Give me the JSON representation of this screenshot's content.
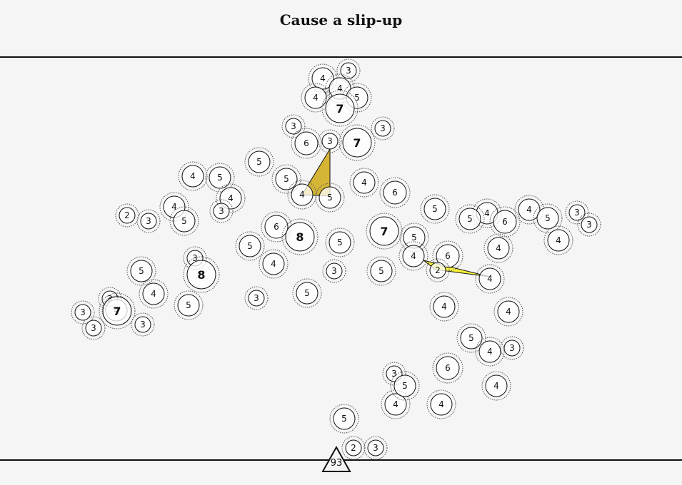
{
  "title": "Cause a slip-up",
  "counter": "93",
  "colors": {
    "background": "#f6f5f5",
    "stroke": "#111111",
    "halo": "#555555",
    "wedge_a": "#d4b536",
    "wedge_b": "#f4f03a"
  },
  "nodes": [
    {
      "id": 1,
      "value": "4"
    },
    {
      "id": 2,
      "value": "3"
    },
    {
      "id": 3,
      "value": "4"
    },
    {
      "id": 4,
      "value": "5"
    },
    {
      "id": 5,
      "value": "4"
    },
    {
      "id": 6,
      "value": "7"
    },
    {
      "id": 7,
      "value": "3"
    },
    {
      "id": 8,
      "value": "3"
    },
    {
      "id": 9,
      "value": "6"
    },
    {
      "id": 10,
      "value": "3"
    },
    {
      "id": 11,
      "value": "7"
    },
    {
      "id": 12,
      "value": "5"
    },
    {
      "id": 13,
      "value": "4"
    },
    {
      "id": 14,
      "value": "5"
    },
    {
      "id": 15,
      "value": "4"
    },
    {
      "id": 16,
      "value": "5"
    },
    {
      "id": 17,
      "value": "4"
    },
    {
      "id": 18,
      "value": "6"
    },
    {
      "id": 19,
      "value": "4"
    },
    {
      "id": 20,
      "value": "3"
    },
    {
      "id": 21,
      "value": "2"
    },
    {
      "id": 22,
      "value": "3"
    },
    {
      "id": 23,
      "value": "4"
    },
    {
      "id": 24,
      "value": "5"
    },
    {
      "id": 25,
      "value": "5"
    },
    {
      "id": 26,
      "value": "6"
    },
    {
      "id": 27,
      "value": "8"
    },
    {
      "id": 28,
      "value": "5"
    },
    {
      "id": 29,
      "value": "7"
    },
    {
      "id": 30,
      "value": "5"
    },
    {
      "id": 31,
      "value": "5"
    },
    {
      "id": 32,
      "value": "4"
    },
    {
      "id": 33,
      "value": "6"
    },
    {
      "id": 34,
      "value": "4"
    },
    {
      "id": 35,
      "value": "5"
    },
    {
      "id": 36,
      "value": "4"
    },
    {
      "id": 37,
      "value": "3"
    },
    {
      "id": 38,
      "value": "3"
    },
    {
      "id": 39,
      "value": "4"
    },
    {
      "id": 40,
      "value": "4"
    },
    {
      "id": 41,
      "value": "4"
    },
    {
      "id": 42,
      "value": "5"
    },
    {
      "id": 43,
      "value": "3"
    },
    {
      "id": 44,
      "value": "8"
    },
    {
      "id": 45,
      "value": "5"
    },
    {
      "id": 46,
      "value": "4"
    },
    {
      "id": 47,
      "value": "5"
    },
    {
      "id": 48,
      "value": "3"
    },
    {
      "id": 49,
      "value": "3"
    },
    {
      "id": 50,
      "value": "5"
    },
    {
      "id": 51,
      "value": "6"
    },
    {
      "id": 52,
      "value": "4"
    },
    {
      "id": 53,
      "value": "2"
    },
    {
      "id": 54,
      "value": "4"
    },
    {
      "id": 55,
      "value": "4"
    },
    {
      "id": 56,
      "value": "4"
    },
    {
      "id": 57,
      "value": "5"
    },
    {
      "id": 58,
      "value": "5"
    },
    {
      "id": 59,
      "value": "3"
    },
    {
      "id": 60,
      "value": "3"
    },
    {
      "id": 61,
      "value": "7"
    },
    {
      "id": 62,
      "value": "3"
    },
    {
      "id": 63,
      "value": "3"
    },
    {
      "id": 64,
      "value": "3"
    },
    {
      "id": 65,
      "value": "6"
    },
    {
      "id": 66,
      "value": "3"
    },
    {
      "id": 67,
      "value": "5"
    },
    {
      "id": 68,
      "value": "4"
    },
    {
      "id": 69,
      "value": "4"
    },
    {
      "id": 70,
      "value": "4"
    },
    {
      "id": 71,
      "value": "5"
    },
    {
      "id": 72,
      "value": "2"
    },
    {
      "id": 73,
      "value": "3"
    }
  ]
}
